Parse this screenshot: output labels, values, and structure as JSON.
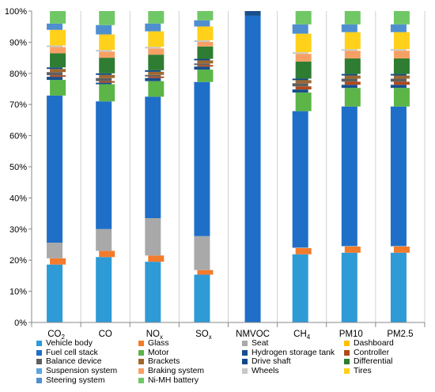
{
  "chart_data": {
    "type": "bar",
    "stacked": "percent",
    "categories": [
      "CO2",
      "CO",
      "NOx",
      "SOx",
      "NMVOC",
      "CH4",
      "PM10",
      "PM2.5"
    ],
    "category_labels": [
      {
        "base": "CO",
        "sub": "2"
      },
      {
        "base": "CO",
        "sub": ""
      },
      {
        "base": "NO",
        "sub": "x"
      },
      {
        "base": "SO",
        "sub": "x"
      },
      {
        "base": "NMVOC",
        "sub": ""
      },
      {
        "base": "CH",
        "sub": "4"
      },
      {
        "base": "PM10",
        "sub": ""
      },
      {
        "base": "PM2.5",
        "sub": ""
      }
    ],
    "y_ticks": [
      "0%",
      "10%",
      "20%",
      "30%",
      "40%",
      "50%",
      "60%",
      "70%",
      "80%",
      "90%",
      "100%"
    ],
    "ylim": [
      0,
      100
    ],
    "grid": false,
    "legend_position": "bottom",
    "series": [
      {
        "name": "Vehicle body",
        "color": "#2E9BD6",
        "values": [
          18.5,
          21.0,
          19.5,
          15.5,
          0,
          22.0,
          22.5,
          22.5
        ]
      },
      {
        "name": "Glass",
        "color": "#F37B2C",
        "values": [
          2.0,
          2.0,
          2.0,
          1.5,
          0,
          2.0,
          2.0,
          2.0
        ]
      },
      {
        "name": "Seat",
        "color": "#A9A9A9",
        "values": [
          5.0,
          7.0,
          12.0,
          11.0,
          0,
          0.2,
          0.2,
          0.2
        ]
      },
      {
        "name": "Dashboard",
        "color": "#FFC000",
        "values": [
          0,
          0,
          0,
          0,
          0,
          0,
          0,
          0
        ]
      },
      {
        "name": "Fuel cell stack",
        "color": "#1F6FC8",
        "values": [
          47.0,
          41.0,
          39.0,
          50.0,
          98.0,
          44.0,
          45.0,
          45.0
        ]
      },
      {
        "name": "Motor",
        "color": "#5BB547",
        "values": [
          5.0,
          5.5,
          5.0,
          4.0,
          0,
          6.0,
          6.0,
          6.0
        ]
      },
      {
        "name": "Hydrogen storage tank",
        "color": "#174F8C",
        "values": [
          1.0,
          0.5,
          1.0,
          1.0,
          1.5,
          1.0,
          1.0,
          1.0
        ]
      },
      {
        "name": "Controller",
        "color": "#B04A1C",
        "values": [
          0.5,
          0.5,
          0.5,
          0.5,
          0,
          1.0,
          1.0,
          1.0
        ]
      },
      {
        "name": "Balance device",
        "color": "#5F5F5F",
        "values": [
          1.0,
          1.0,
          0.5,
          0.5,
          0,
          1.0,
          1.0,
          1.0
        ]
      },
      {
        "name": "Brackets",
        "color": "#A0672E",
        "values": [
          1.0,
          1.0,
          1.0,
          1.0,
          0,
          1.0,
          1.0,
          1.0
        ]
      },
      {
        "name": "Drive shaft",
        "color": "#0E4A86",
        "values": [
          0.5,
          0.5,
          0.5,
          0.5,
          0,
          0.5,
          0.5,
          0.5
        ]
      },
      {
        "name": "Differential",
        "color": "#2E7D32",
        "values": [
          4.5,
          5.0,
          5.0,
          4.0,
          0,
          5.5,
          5.0,
          5.0
        ]
      },
      {
        "name": "Suspension system",
        "color": "#5AA5DF",
        "values": [
          0,
          0,
          0,
          0,
          0,
          0,
          0,
          0
        ]
      },
      {
        "name": "Braking system",
        "color": "#F7A065",
        "values": [
          2.0,
          2.0,
          2.0,
          1.5,
          0,
          2.5,
          2.5,
          2.5
        ]
      },
      {
        "name": "Wheels",
        "color": "#C8C8C8",
        "values": [
          0.5,
          0.5,
          0.5,
          0.5,
          0,
          0.5,
          0.5,
          0.5
        ]
      },
      {
        "name": "Tires",
        "color": "#FFD11A",
        "values": [
          5.0,
          5.0,
          5.0,
          4.5,
          0,
          6.0,
          5.5,
          5.5
        ]
      },
      {
        "name": "Steering system",
        "color": "#4F8FD0",
        "values": [
          2.0,
          3.0,
          2.5,
          2.0,
          0,
          3.0,
          2.5,
          2.5
        ]
      },
      {
        "name": "Ni-MH battery",
        "color": "#70C765",
        "values": [
          4.0,
          4.5,
          4.0,
          3.0,
          0,
          4.3,
          4.3,
          4.3
        ]
      }
    ]
  }
}
